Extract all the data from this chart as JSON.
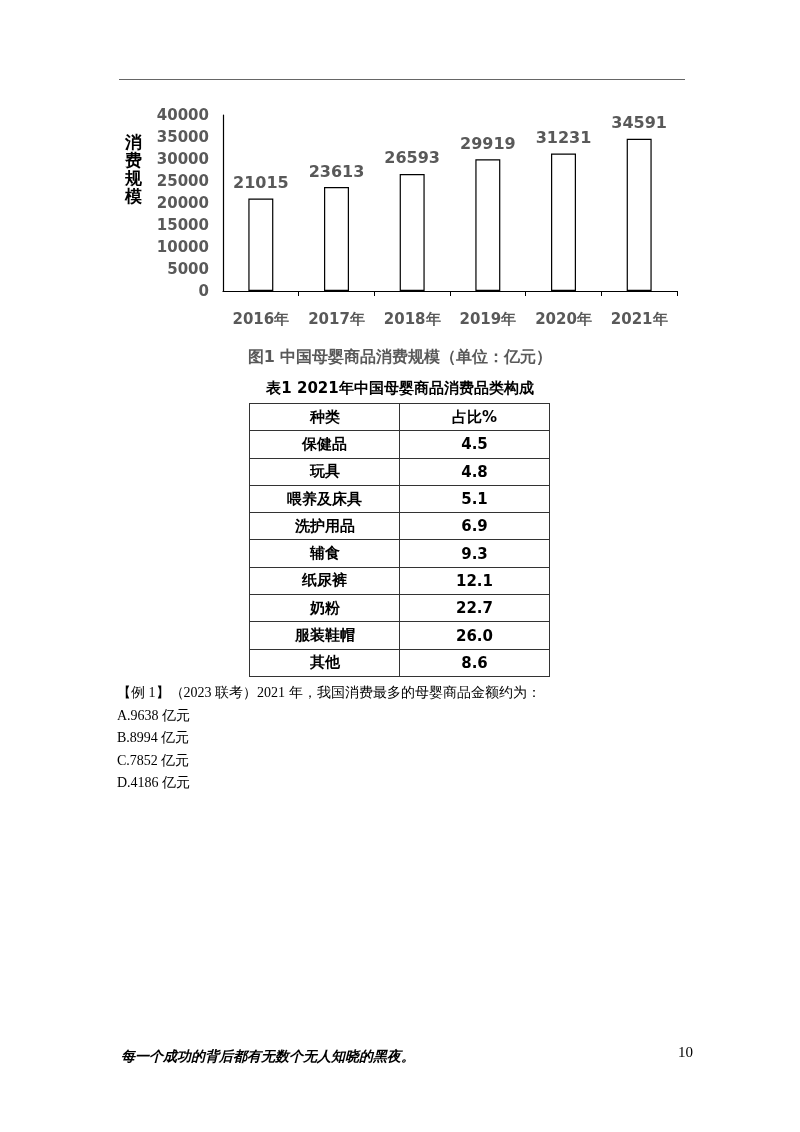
{
  "chart_data": [
    {
      "type": "bar",
      "title": "图1 中国母婴商品消费规模（单位：亿元）",
      "ylabel": "消费规模",
      "categories": [
        "2016年",
        "2017年",
        "2018年",
        "2019年",
        "2020年",
        "2021年"
      ],
      "values": [
        21015,
        23613,
        26593,
        29919,
        31231,
        34591
      ],
      "color": "#ffffff",
      "ylim": [
        0,
        40000
      ],
      "yticks": [
        0,
        5000,
        10000,
        15000,
        20000,
        25000,
        30000,
        35000,
        40000
      ],
      "data_labels": true
    },
    {
      "type": "other",
      "title": "表1 2021年中国母婴商品消费品类构成",
      "xlabel": "种类",
      "ylabel": "占比%",
      "categories": [
        "保健品",
        "玩具",
        "喂养及床具",
        "洗护用品",
        "辅食",
        "纸尿裤",
        "奶粉",
        "服装鞋帽",
        "其他"
      ],
      "values": [
        4.5,
        4.8,
        5.1,
        6.9,
        9.3,
        12.1,
        22.7,
        26.0,
        8.6
      ],
      "value_labels": [
        "4.5",
        "4.8",
        "5.1",
        "6.9",
        "9.3",
        "12.1",
        "22.7",
        "26.0",
        "8.6"
      ],
      "annotations": [
        "【例 1】（2023 联考）2021 年，我国消费最多的母婴商品金额约为：",
        "A.9638 亿元",
        "B.8994 亿元",
        "C.7852 亿元",
        "D.4186 亿元",
        "每一个成功的背后都有无数个无人知晓的黑夜。",
        "10"
      ]
    }
  ]
}
